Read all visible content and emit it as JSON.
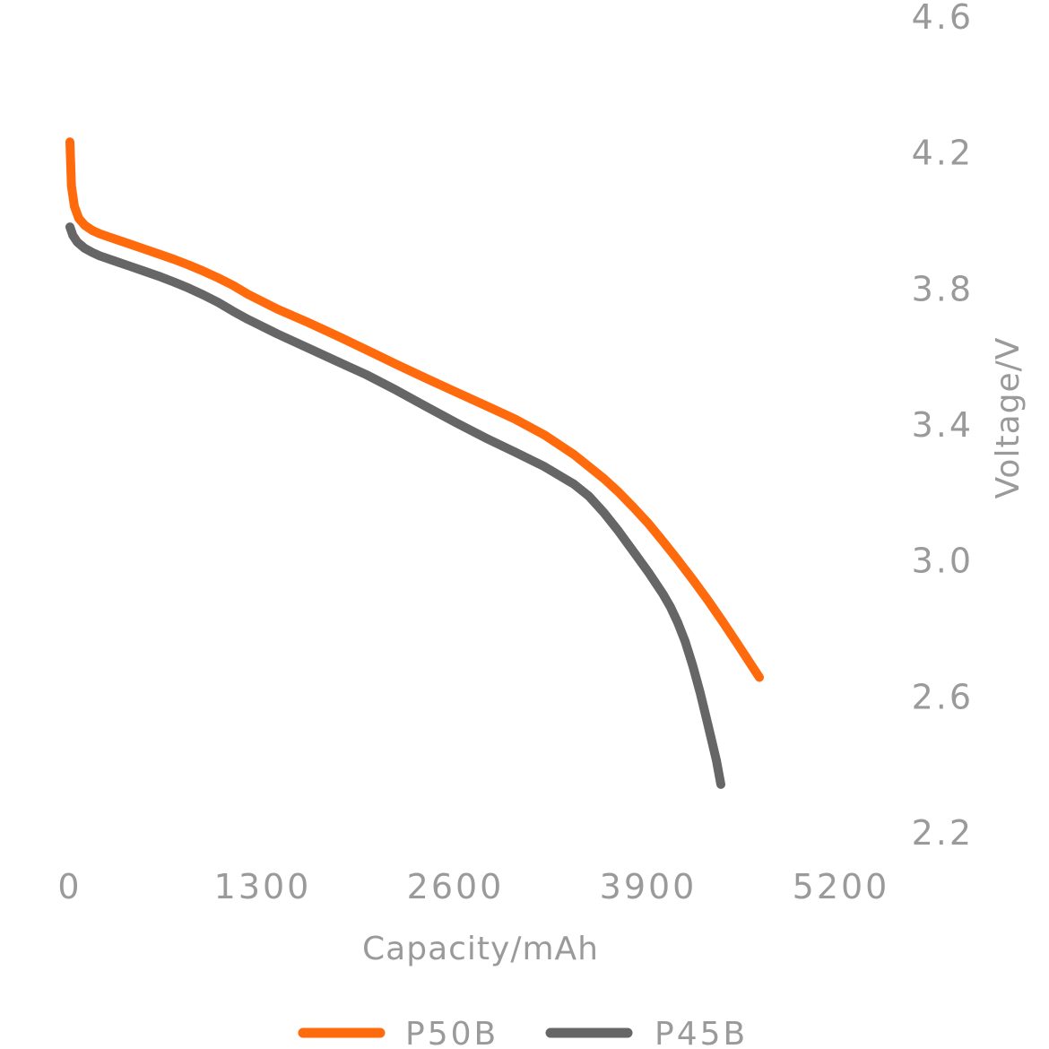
{
  "chart_data": {
    "type": "line",
    "xlabel": "Capacity/mAh",
    "ylabel": "Voltage/V",
    "xlim": [
      0,
      5200
    ],
    "ylim": [
      2.2,
      4.6
    ],
    "x_ticks": [
      "0",
      "1300",
      "2600",
      "3900",
      "5200"
    ],
    "y_ticks": [
      "2.2",
      "2.6",
      "3.0",
      "3.4",
      "3.8",
      "4.2",
      "4.6"
    ],
    "y_axis_side": "right",
    "grid": false,
    "legend_position": "bottom",
    "series": [
      {
        "name": "P50B",
        "color": "#ff6a0d",
        "x": [
          0,
          10,
          30,
          60,
          100,
          150,
          200,
          300,
          400,
          500,
          600,
          700,
          800,
          900,
          1000,
          1100,
          1200,
          1400,
          1600,
          1800,
          2000,
          2200,
          2400,
          2600,
          2800,
          3000,
          3200,
          3400,
          3600,
          3700,
          3800,
          3900,
          4000,
          4100,
          4200,
          4300,
          4400,
          4500,
          4600,
          4650
        ],
        "y": [
          4.23,
          4.1,
          4.04,
          4.005,
          3.985,
          3.97,
          3.96,
          3.945,
          3.93,
          3.915,
          3.9,
          3.885,
          3.868,
          3.85,
          3.83,
          3.808,
          3.782,
          3.738,
          3.7,
          3.66,
          3.618,
          3.576,
          3.535,
          3.495,
          3.455,
          3.415,
          3.368,
          3.31,
          3.24,
          3.2,
          3.155,
          3.108,
          3.055,
          3.0,
          2.943,
          2.883,
          2.82,
          2.755,
          2.688,
          2.655
        ]
      },
      {
        "name": "P45B",
        "color": "#666666",
        "x": [
          0,
          20,
          50,
          100,
          150,
          200,
          300,
          400,
          500,
          600,
          700,
          800,
          900,
          1000,
          1100,
          1200,
          1400,
          1600,
          1800,
          2000,
          2200,
          2400,
          2600,
          2800,
          3000,
          3200,
          3400,
          3500,
          3600,
          3700,
          3800,
          3900,
          4000,
          4050,
          4100,
          4150,
          4200,
          4250,
          4300,
          4360,
          4390
        ],
        "y": [
          3.98,
          3.955,
          3.935,
          3.917,
          3.905,
          3.895,
          3.88,
          3.865,
          3.85,
          3.835,
          3.818,
          3.8,
          3.78,
          3.758,
          3.732,
          3.708,
          3.665,
          3.625,
          3.585,
          3.545,
          3.5,
          3.452,
          3.405,
          3.36,
          3.318,
          3.275,
          3.223,
          3.188,
          3.14,
          3.085,
          3.025,
          2.965,
          2.9,
          2.862,
          2.815,
          2.76,
          2.69,
          2.61,
          2.52,
          2.41,
          2.34
        ]
      }
    ]
  }
}
